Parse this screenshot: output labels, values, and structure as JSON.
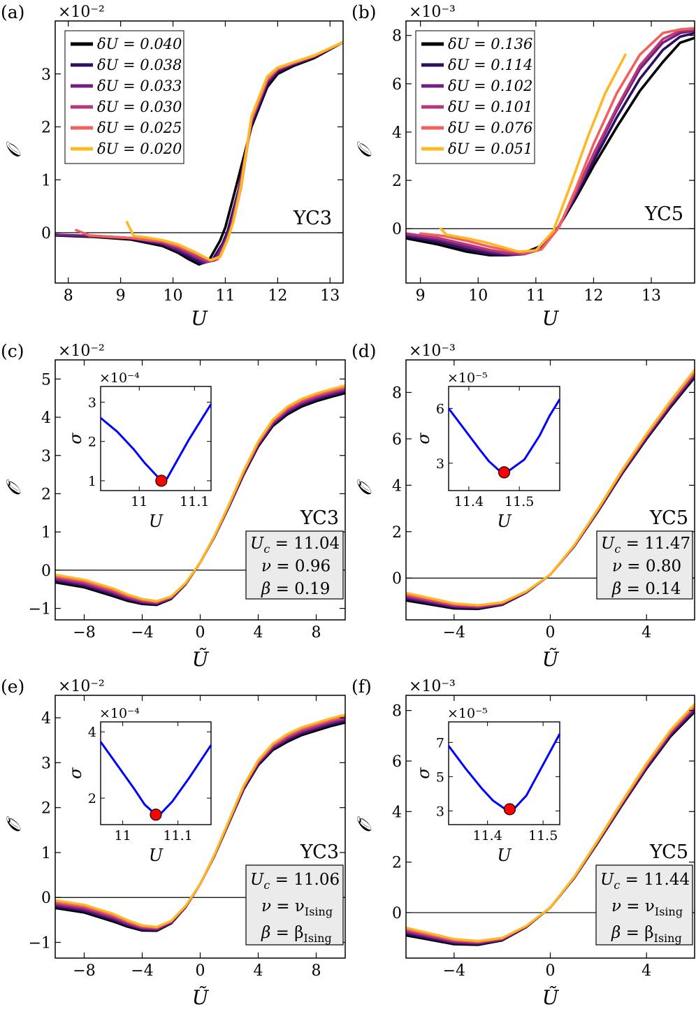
{
  "figure": {
    "colors": {
      "background": "#ffffff",
      "axis": "#000000",
      "param_box_fill": "#ebebeb",
      "inset_curve": "#0000ff",
      "inset_marker": "#ff0000",
      "palette": [
        "#000000",
        "#2d1160",
        "#721f81",
        "#b73779",
        "#f1605d",
        "#feb824"
      ]
    }
  },
  "chart_data": [
    {
      "id": "a",
      "panel_label": "(a)",
      "type": "line",
      "xlabel": "U",
      "ylabel": "𝒪",
      "xlim": [
        7.75,
        13.25
      ],
      "ylim": [
        -0.95,
        4.0
      ],
      "xticks": [
        8,
        9,
        10,
        11,
        12,
        13
      ],
      "yticks": [
        0,
        1,
        2,
        3
      ],
      "ytick_labels": [
        "0",
        "1",
        "2",
        "3"
      ],
      "multiplier": "×10⁻²",
      "system": "YC3",
      "legend_location": "upper-left",
      "series": [
        {
          "name": "δU = 0.040",
          "color": "#000000",
          "x": [
            7.75,
            8.5,
            9.2,
            9.8,
            10.1,
            10.3,
            10.5,
            10.7,
            10.9,
            11.0,
            11.2,
            11.5,
            11.8,
            12.0,
            12.3,
            12.7,
            13.25
          ],
          "y": [
            -0.05,
            -0.08,
            -0.13,
            -0.25,
            -0.38,
            -0.5,
            -0.6,
            -0.5,
            -0.15,
            0.1,
            0.85,
            2.0,
            2.75,
            3.0,
            3.15,
            3.3,
            3.6
          ]
        },
        {
          "name": "δU = 0.038",
          "color": "#2d1160",
          "x": [
            7.75,
            8.5,
            9.2,
            9.8,
            10.1,
            10.35,
            10.55,
            10.75,
            10.95,
            11.05,
            11.25,
            11.5,
            11.8,
            12.0,
            12.3,
            12.7,
            13.25
          ],
          "y": [
            -0.04,
            -0.07,
            -0.11,
            -0.22,
            -0.35,
            -0.48,
            -0.58,
            -0.52,
            -0.2,
            0.05,
            0.8,
            2.05,
            2.8,
            3.04,
            3.17,
            3.32,
            3.6
          ]
        },
        {
          "name": "δU = 0.033",
          "color": "#721f81",
          "x": [
            7.75,
            8.5,
            9.2,
            9.8,
            10.1,
            10.4,
            10.6,
            10.8,
            11.0,
            11.1,
            11.25,
            11.5,
            11.8,
            12.0,
            12.3,
            12.7,
            13.25
          ],
          "y": [
            -0.04,
            -0.06,
            -0.1,
            -0.2,
            -0.32,
            -0.45,
            -0.56,
            -0.52,
            -0.15,
            0.1,
            0.75,
            2.1,
            2.85,
            3.07,
            3.19,
            3.33,
            3.6
          ]
        },
        {
          "name": "δU = 0.030",
          "color": "#b73779",
          "x": [
            8.4,
            8.8,
            9.2,
            9.8,
            10.1,
            10.4,
            10.65,
            10.85,
            11.0,
            11.1,
            11.25,
            11.5,
            11.8,
            12.0,
            12.3,
            12.7,
            13.25
          ],
          "y": [
            -0.06,
            -0.08,
            -0.1,
            -0.18,
            -0.28,
            -0.42,
            -0.54,
            -0.5,
            -0.2,
            0.05,
            0.72,
            2.12,
            2.88,
            3.09,
            3.2,
            3.34,
            3.6
          ]
        },
        {
          "name": "δU = 0.025",
          "color": "#f1605d",
          "x": [
            8.15,
            8.4,
            8.8,
            9.2,
            9.8,
            10.1,
            10.45,
            10.7,
            10.9,
            11.05,
            11.15,
            11.3,
            11.5,
            11.8,
            12.0,
            12.3,
            12.7,
            13.25
          ],
          "y": [
            0.05,
            -0.05,
            -0.08,
            -0.1,
            -0.16,
            -0.25,
            -0.4,
            -0.52,
            -0.45,
            -0.1,
            0.2,
            0.85,
            2.15,
            2.9,
            3.1,
            3.21,
            3.34,
            3.6
          ]
        },
        {
          "name": "δU = 0.020",
          "color": "#feb824",
          "x": [
            9.12,
            9.25,
            9.5,
            9.8,
            10.1,
            10.45,
            10.72,
            10.9,
            11.05,
            11.15,
            11.3,
            11.5,
            11.8,
            12.0,
            12.3,
            12.7,
            13.25
          ],
          "y": [
            0.2,
            -0.06,
            -0.09,
            -0.14,
            -0.22,
            -0.38,
            -0.52,
            -0.46,
            -0.12,
            0.2,
            0.88,
            2.2,
            2.95,
            3.12,
            3.22,
            3.35,
            3.6
          ]
        }
      ]
    },
    {
      "id": "b",
      "panel_label": "(b)",
      "type": "line",
      "xlabel": "U",
      "ylabel": "𝒪",
      "xlim": [
        8.75,
        13.75
      ],
      "ylim": [
        -2.25,
        8.6
      ],
      "xticks": [
        9,
        10,
        11,
        12,
        13
      ],
      "yticks": [
        0,
        2,
        4,
        6,
        8
      ],
      "ytick_labels": [
        "0",
        "2",
        "4",
        "6",
        "8"
      ],
      "multiplier": "×10⁻³",
      "system": "YC5",
      "legend_location": "upper-left",
      "series": [
        {
          "name": "δU = 0.136",
          "color": "#000000",
          "x": [
            8.75,
            9.3,
            9.8,
            10.2,
            10.5,
            10.8,
            11.1,
            11.4,
            11.7,
            12.0,
            12.4,
            12.8,
            13.2,
            13.5,
            13.75
          ],
          "y": [
            -0.4,
            -0.65,
            -0.95,
            -1.1,
            -1.1,
            -1.0,
            -0.7,
            0.1,
            1.3,
            2.6,
            4.2,
            5.7,
            6.9,
            7.7,
            7.9
          ]
        },
        {
          "name": "δU = 0.114",
          "color": "#2d1160",
          "x": [
            8.75,
            9.3,
            9.8,
            10.2,
            10.5,
            10.8,
            11.1,
            11.4,
            11.7,
            12.0,
            12.4,
            12.8,
            13.2,
            13.5,
            13.75
          ],
          "y": [
            -0.32,
            -0.55,
            -0.85,
            -1.05,
            -1.1,
            -1.05,
            -0.75,
            0.1,
            1.4,
            2.8,
            4.6,
            6.2,
            7.4,
            7.95,
            8.1
          ]
        },
        {
          "name": "δU = 0.102",
          "color": "#721f81",
          "x": [
            8.75,
            9.3,
            9.8,
            10.2,
            10.5,
            10.8,
            11.1,
            11.4,
            11.7,
            12.0,
            12.4,
            12.8,
            13.2,
            13.5,
            13.75
          ],
          "y": [
            -0.25,
            -0.45,
            -0.75,
            -0.95,
            -1.05,
            -1.05,
            -0.8,
            0.1,
            1.5,
            3.0,
            4.9,
            6.6,
            7.7,
            8.1,
            8.2
          ]
        },
        {
          "name": "δU = 0.101",
          "color": "#b73779",
          "x": [
            8.75,
            9.3,
            9.8,
            10.2,
            10.5,
            10.8,
            11.1,
            11.4,
            11.7,
            12.0,
            12.4,
            12.8,
            13.2,
            13.5,
            13.75
          ],
          "y": [
            -0.2,
            -0.38,
            -0.65,
            -0.88,
            -1.0,
            -1.05,
            -0.85,
            0.1,
            1.55,
            3.1,
            5.0,
            6.75,
            7.85,
            8.2,
            8.25
          ]
        },
        {
          "name": "δU = 0.076",
          "color": "#f1605d",
          "x": [
            9.0,
            9.4,
            9.8,
            10.2,
            10.5,
            10.8,
            11.1,
            11.4,
            11.7,
            12.0,
            12.4,
            12.8,
            13.2,
            13.5,
            13.75
          ],
          "y": [
            -0.2,
            -0.3,
            -0.5,
            -0.75,
            -0.9,
            -1.0,
            -0.85,
            0.05,
            1.7,
            3.5,
            5.6,
            7.2,
            8.1,
            8.25,
            8.3
          ]
        },
        {
          "name": "δU = 0.051",
          "color": "#feb824",
          "x": [
            9.35,
            9.45,
            9.8,
            10.1,
            10.4,
            10.7,
            11.0,
            11.3,
            11.6,
            11.9,
            12.2,
            12.55
          ],
          "y": [
            0.0,
            -0.25,
            -0.4,
            -0.55,
            -0.75,
            -0.95,
            -0.9,
            -0.1,
            1.8,
            3.8,
            5.6,
            7.2
          ]
        }
      ]
    },
    {
      "id": "c",
      "panel_label": "(c)",
      "type": "line",
      "xlabel": "Ũ",
      "ylabel": "𝒪̃",
      "xlim": [
        -10,
        10
      ],
      "ylim": [
        -1.3,
        5.5
      ],
      "xticks": [
        -8,
        -4,
        0,
        4,
        8
      ],
      "yticks": [
        -1,
        0,
        1,
        2,
        3,
        4,
        5
      ],
      "xtick_labels": [
        "−8",
        "−4",
        "0",
        "4",
        "8"
      ],
      "ytick_labels": [
        "−1",
        "0",
        "1",
        "2",
        "3",
        "4",
        "5"
      ],
      "multiplier": "×10⁻²",
      "system": "YC3",
      "params": {
        "Uc": "= 11.04",
        "nu": "= 0.96",
        "beta": "= 0.19"
      },
      "collapse": {
        "x": [
          -10,
          -8,
          -6,
          -5,
          -4,
          -3,
          -2,
          -1,
          0,
          1,
          2,
          3,
          4,
          5,
          6,
          7,
          8,
          9,
          10
        ],
        "y": [
          -0.22,
          -0.35,
          -0.58,
          -0.72,
          -0.82,
          -0.86,
          -0.72,
          -0.35,
          0.2,
          0.9,
          1.7,
          2.55,
          3.3,
          3.85,
          4.17,
          4.38,
          4.52,
          4.63,
          4.73
        ]
      },
      "inset": {
        "multiplier": "×10⁻⁴",
        "xlabel": "U",
        "ylabel": "σ",
        "xlim": [
          10.93,
          11.13
        ],
        "ylim": [
          0.75,
          3.4
        ],
        "xticks": [
          11.0,
          11.1
        ],
        "xtick_labels": [
          "11",
          "11.1"
        ],
        "yticks": [
          1,
          2,
          3
        ],
        "ytick_labels": [
          "1",
          "2",
          "3"
        ],
        "x": [
          10.93,
          10.96,
          10.99,
          11.01,
          11.03,
          11.04,
          11.05,
          11.07,
          11.09,
          11.11,
          11.13
        ],
        "y": [
          2.6,
          2.25,
          1.8,
          1.45,
          1.15,
          1.0,
          1.05,
          1.55,
          2.05,
          2.5,
          2.95
        ],
        "min": {
          "U": 11.04,
          "sigma": 1.0
        }
      }
    },
    {
      "id": "d",
      "panel_label": "(d)",
      "type": "line",
      "xlabel": "Ũ",
      "ylabel": "𝒪̃",
      "xlim": [
        -6,
        6
      ],
      "ylim": [
        -1.8,
        9.4
      ],
      "xticks": [
        -4,
        0,
        4
      ],
      "yticks": [
        0,
        2,
        4,
        6,
        8
      ],
      "xtick_labels": [
        "−4",
        "0",
        "4"
      ],
      "ytick_labels": [
        "0",
        "2",
        "4",
        "6",
        "8"
      ],
      "multiplier": "×10⁻³",
      "system": "YC5",
      "params": {
        "Uc": "= 11.47",
        "nu": "= 0.80",
        "beta": "= 0.14"
      },
      "collapse": {
        "x": [
          -6,
          -5,
          -4,
          -3,
          -2,
          -1,
          0,
          1,
          2,
          3,
          4,
          5,
          6
        ],
        "y": [
          -0.8,
          -1.0,
          -1.2,
          -1.25,
          -1.1,
          -0.6,
          0.15,
          1.4,
          2.95,
          4.6,
          6.1,
          7.5,
          8.8
        ]
      },
      "inset": {
        "multiplier": "×10⁻⁵",
        "xlabel": "U",
        "ylabel": "σ",
        "xlim": [
          11.36,
          11.58
        ],
        "ylim": [
          1.5,
          7.2
        ],
        "xticks": [
          11.4,
          11.5
        ],
        "xtick_labels": [
          "11.4",
          "11.5"
        ],
        "yticks": [
          3,
          6
        ],
        "ytick_labels": [
          "3",
          "6"
        ],
        "x": [
          11.36,
          11.39,
          11.42,
          11.44,
          11.46,
          11.47,
          11.48,
          11.51,
          11.54,
          11.56,
          11.58
        ],
        "y": [
          6.0,
          4.9,
          3.8,
          3.1,
          2.6,
          2.5,
          2.6,
          3.2,
          4.5,
          5.6,
          6.5
        ],
        "min": {
          "U": 11.47,
          "sigma": 2.5
        }
      }
    },
    {
      "id": "e",
      "panel_label": "(e)",
      "type": "line",
      "xlabel": "Ũ",
      "ylabel": "𝒪̃",
      "xlim": [
        -10,
        10
      ],
      "ylim": [
        -1.35,
        4.5
      ],
      "xticks": [
        -8,
        -4,
        0,
        4,
        8
      ],
      "yticks": [
        -1,
        0,
        1,
        2,
        3,
        4
      ],
      "xtick_labels": [
        "−8",
        "−4",
        "0",
        "4",
        "8"
      ],
      "ytick_labels": [
        "−1",
        "0",
        "1",
        "2",
        "3",
        "4"
      ],
      "multiplier": "×10⁻²",
      "system": "YC3",
      "params": {
        "Uc": "= 11.06",
        "nu": "= ν",
        "nu_sub": "Ising",
        "beta": "= β",
        "beta_sub": "Ising"
      },
      "collapse": {
        "x": [
          -10,
          -8,
          -6,
          -5,
          -4,
          -3,
          -2,
          -1,
          0,
          1,
          2,
          3,
          4,
          5,
          6,
          7,
          8,
          9,
          10
        ],
        "y": [
          -0.15,
          -0.25,
          -0.45,
          -0.58,
          -0.68,
          -0.7,
          -0.55,
          -0.2,
          0.3,
          0.95,
          1.7,
          2.45,
          3.0,
          3.35,
          3.55,
          3.7,
          3.8,
          3.9,
          3.98
        ]
      },
      "inset": {
        "multiplier": "×10⁻⁴",
        "xlabel": "U",
        "ylabel": "σ",
        "xlim": [
          10.96,
          11.16
        ],
        "ylim": [
          1.2,
          4.3
        ],
        "xticks": [
          11.0,
          11.1
        ],
        "xtick_labels": [
          "11",
          "11.1"
        ],
        "yticks": [
          2,
          4
        ],
        "ytick_labels": [
          "2",
          "4"
        ],
        "x": [
          10.96,
          10.99,
          11.02,
          11.04,
          11.06,
          11.07,
          11.09,
          11.12,
          11.14,
          11.16
        ],
        "y": [
          3.7,
          3.0,
          2.3,
          1.8,
          1.5,
          1.55,
          1.9,
          2.6,
          3.1,
          3.6
        ],
        "min": {
          "U": 11.06,
          "sigma": 1.5
        }
      }
    },
    {
      "id": "f",
      "panel_label": "(f)",
      "type": "line",
      "xlabel": "Ũ",
      "ylabel": "𝒪̃",
      "xlim": [
        -6,
        6
      ],
      "ylim": [
        -1.8,
        8.6
      ],
      "xticks": [
        -4,
        0,
        4
      ],
      "yticks": [
        0,
        2,
        4,
        6,
        8
      ],
      "xtick_labels": [
        "−4",
        "0",
        "4"
      ],
      "ytick_labels": [
        "0",
        "2",
        "4",
        "6",
        "8"
      ],
      "multiplier": "×10⁻³",
      "system": "YC5",
      "params": {
        "Uc": "= 11.44",
        "nu": "= ν",
        "nu_sub": "Ising",
        "beta": "= β",
        "beta_sub": "Ising"
      },
      "collapse": {
        "x": [
          -6,
          -5,
          -4,
          -3,
          -2,
          -1,
          0,
          1,
          2,
          3,
          4,
          5,
          6
        ],
        "y": [
          -0.75,
          -0.95,
          -1.15,
          -1.2,
          -1.05,
          -0.55,
          0.2,
          1.4,
          2.85,
          4.35,
          5.8,
          7.1,
          8.1
        ]
      },
      "inset": {
        "multiplier": "×10⁻⁵",
        "xlabel": "U",
        "ylabel": "σ",
        "xlim": [
          11.33,
          11.53
        ],
        "ylim": [
          2.2,
          8.2
        ],
        "xticks": [
          11.4,
          11.5
        ],
        "xtick_labels": [
          "11.4",
          "11.5"
        ],
        "yticks": [
          3,
          5,
          7
        ],
        "ytick_labels": [
          "3",
          "5",
          "7"
        ],
        "x": [
          11.33,
          11.36,
          11.39,
          11.41,
          11.43,
          11.44,
          11.45,
          11.47,
          11.49,
          11.51,
          11.53
        ],
        "y": [
          6.8,
          5.5,
          4.3,
          3.6,
          3.15,
          3.1,
          3.2,
          3.9,
          5.1,
          6.3,
          7.5
        ],
        "min": {
          "U": 11.44,
          "sigma": 3.1
        }
      }
    }
  ]
}
